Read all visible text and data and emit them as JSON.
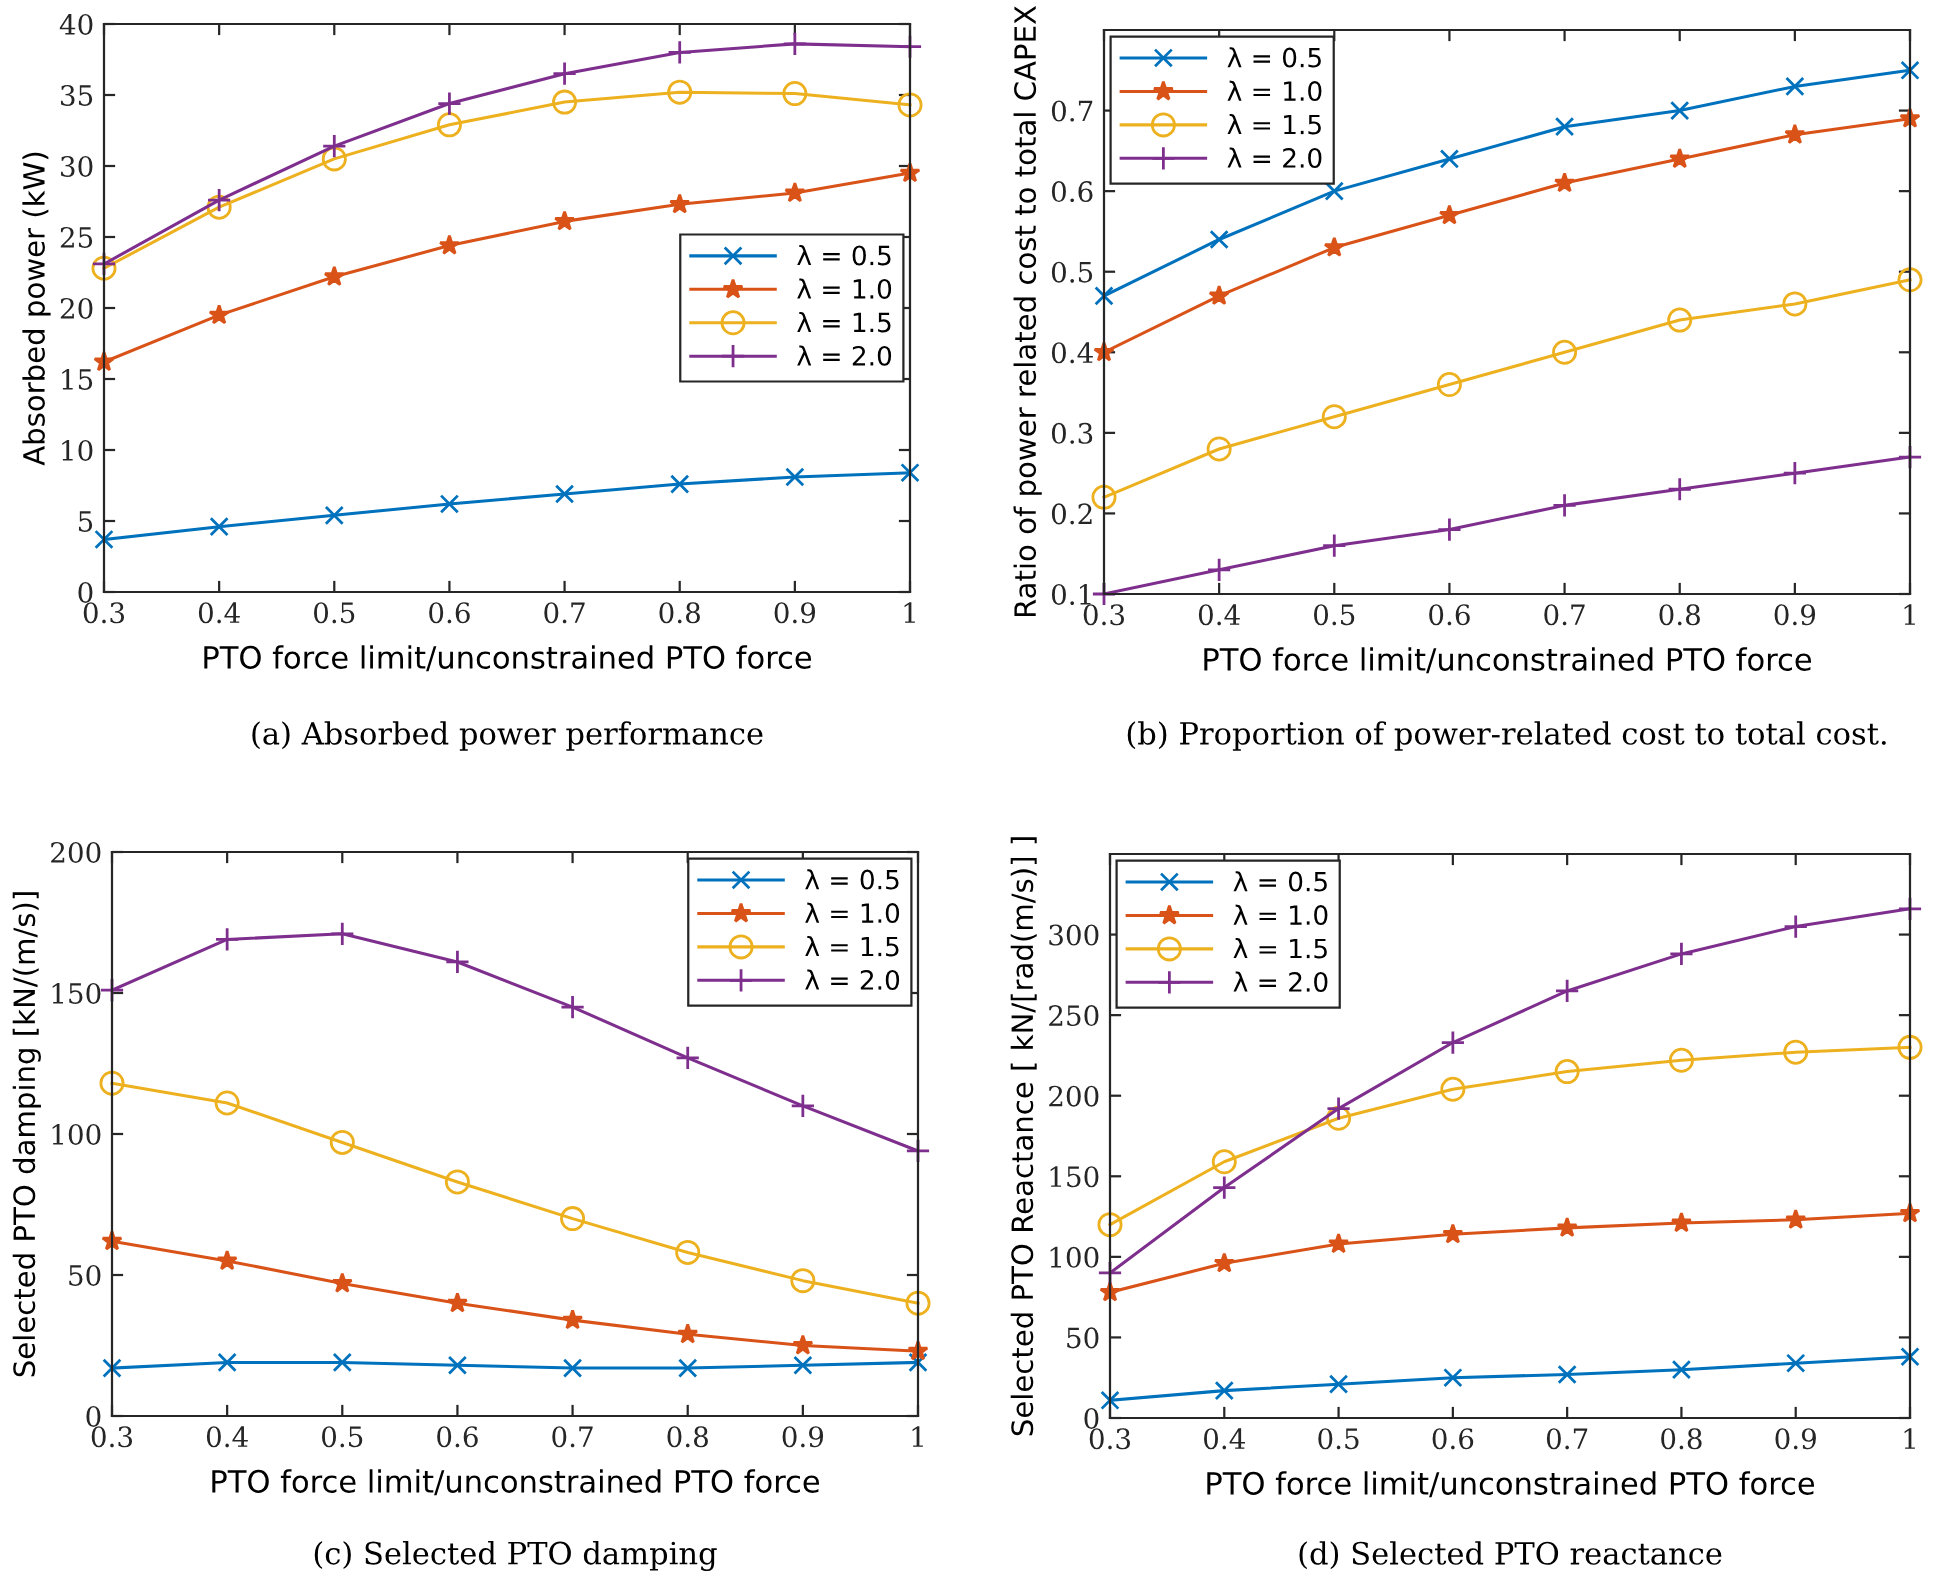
{
  "chart_data": [
    {
      "type": "line",
      "xlabel": "PTO force limit/unconstrained PTO force",
      "ylabel": "Absorbed power (kW)",
      "annotations": [
        "(a) Absorbed power performance"
      ],
      "x": [
        0.3,
        0.4,
        0.5,
        0.6,
        0.7,
        0.8,
        0.9,
        1
      ],
      "xlim": [
        0.3,
        1
      ],
      "xticks": [
        0.3,
        0.4,
        0.5,
        0.6,
        0.7,
        0.8,
        0.9,
        1
      ],
      "ylim": [
        0,
        40
      ],
      "yticks": [
        0,
        5,
        10,
        15,
        20,
        25,
        30,
        35,
        40
      ],
      "grid": false,
      "legend": "right",
      "line_style": "solid",
      "series": [
        {
          "name": "λ = 0.5",
          "color": "#0072bd",
          "marker": "cross",
          "values": [
            3.7,
            4.6,
            5.4,
            6.2,
            6.9,
            7.6,
            8.1,
            8.4
          ]
        },
        {
          "name": "λ = 1.0",
          "color": "#d95319",
          "marker": "star",
          "values": [
            16.2,
            19.5,
            22.2,
            24.4,
            26.1,
            27.3,
            28.1,
            29.5
          ]
        },
        {
          "name": "λ = 1.5",
          "color": "#edb120",
          "marker": "circle",
          "values": [
            22.8,
            27.1,
            30.5,
            32.9,
            34.5,
            35.2,
            35.1,
            34.3
          ]
        },
        {
          "name": "λ = 2.0",
          "color": "#7e2f8e",
          "marker": "plus",
          "values": [
            23.1,
            27.6,
            31.4,
            34.4,
            36.5,
            38.0,
            38.6,
            38.4
          ]
        }
      ]
    },
    {
      "type": "line",
      "xlabel": "PTO force limit/unconstrained PTO force",
      "ylabel": "Ratio of power related cost to total CAPEX",
      "annotations": [
        "(b) Proportion of power-related cost to total cost."
      ],
      "x": [
        0.3,
        0.4,
        0.5,
        0.6,
        0.7,
        0.8,
        0.9,
        1
      ],
      "xlim": [
        0.3,
        1
      ],
      "xticks": [
        0.3,
        0.4,
        0.5,
        0.6,
        0.7,
        0.8,
        0.9,
        1
      ],
      "ylim": [
        0.1,
        0.8
      ],
      "yticks": [
        0.1,
        0.2,
        0.3,
        0.4,
        0.5,
        0.6,
        0.7
      ],
      "grid": false,
      "legend": "top left",
      "line_style": "solid",
      "series": [
        {
          "name": "λ = 0.5",
          "color": "#0072bd",
          "marker": "cross",
          "values": [
            0.47,
            0.54,
            0.6,
            0.64,
            0.68,
            0.7,
            0.73,
            0.75
          ]
        },
        {
          "name": "λ = 1.0",
          "color": "#d95319",
          "marker": "star",
          "values": [
            0.4,
            0.47,
            0.53,
            0.57,
            0.61,
            0.64,
            0.67,
            0.69
          ]
        },
        {
          "name": "λ = 1.5",
          "color": "#edb120",
          "marker": "circle",
          "values": [
            0.22,
            0.28,
            0.32,
            0.36,
            0.4,
            0.44,
            0.46,
            0.49
          ]
        },
        {
          "name": "λ = 2.0",
          "color": "#7e2f8e",
          "marker": "plus",
          "values": [
            0.1,
            0.13,
            0.16,
            0.18,
            0.21,
            0.23,
            0.25,
            0.27
          ]
        }
      ]
    },
    {
      "type": "line",
      "xlabel": "PTO force limit/unconstrained PTO force",
      "ylabel": "Selected PTO damping [kN/(m/s)]",
      "annotations": [
        "(c) Selected PTO damping"
      ],
      "x": [
        0.3,
        0.4,
        0.5,
        0.6,
        0.7,
        0.8,
        0.9,
        1
      ],
      "xlim": [
        0.3,
        1
      ],
      "xticks": [
        0.3,
        0.4,
        0.5,
        0.6,
        0.7,
        0.8,
        0.9,
        1
      ],
      "ylim": [
        0,
        200
      ],
      "yticks": [
        0,
        50,
        100,
        150,
        200
      ],
      "grid": false,
      "legend": "top right",
      "line_style": "solid",
      "series": [
        {
          "name": "λ = 0.5",
          "color": "#0072bd",
          "marker": "cross",
          "values": [
            17,
            19,
            19,
            18,
            17,
            17,
            18,
            19
          ]
        },
        {
          "name": "λ = 1.0",
          "color": "#d95319",
          "marker": "star",
          "values": [
            62,
            55,
            47,
            40,
            34,
            29,
            25,
            23
          ]
        },
        {
          "name": "λ = 1.5",
          "color": "#edb120",
          "marker": "circle",
          "values": [
            118,
            111,
            97,
            83,
            70,
            58,
            48,
            40
          ]
        },
        {
          "name": "λ = 2.0",
          "color": "#7e2f8e",
          "marker": "plus",
          "values": [
            151,
            169,
            171,
            161,
            145,
            127,
            110,
            94
          ]
        }
      ]
    },
    {
      "type": "line",
      "xlabel": "PTO force limit/unconstrained PTO force",
      "ylabel": "Selected PTO Reactance [ kN/[rad(m/s)] ]",
      "annotations": [
        "(d) Selected PTO reactance"
      ],
      "x": [
        0.3,
        0.4,
        0.5,
        0.6,
        0.7,
        0.8,
        0.9,
        1
      ],
      "xlim": [
        0.3,
        1
      ],
      "xticks": [
        0.3,
        0.4,
        0.5,
        0.6,
        0.7,
        0.8,
        0.9,
        1
      ],
      "ylim": [
        0,
        350
      ],
      "yticks": [
        0,
        50,
        100,
        150,
        200,
        250,
        300
      ],
      "grid": false,
      "legend": "top left",
      "line_style": "solid",
      "series": [
        {
          "name": "λ = 0.5",
          "color": "#0072bd",
          "marker": "cross",
          "values": [
            11,
            17,
            21,
            25,
            27,
            30,
            34,
            38
          ]
        },
        {
          "name": "λ = 1.0",
          "color": "#d95319",
          "marker": "star",
          "values": [
            78,
            96,
            108,
            114,
            118,
            121,
            123,
            127
          ]
        },
        {
          "name": "λ = 1.5",
          "color": "#edb120",
          "marker": "circle",
          "values": [
            120,
            159,
            186,
            204,
            215,
            222,
            227,
            230
          ]
        },
        {
          "name": "λ = 2.0",
          "color": "#7e2f8e",
          "marker": "plus",
          "values": [
            90,
            143,
            192,
            233,
            265,
            288,
            305,
            316
          ]
        }
      ]
    }
  ]
}
